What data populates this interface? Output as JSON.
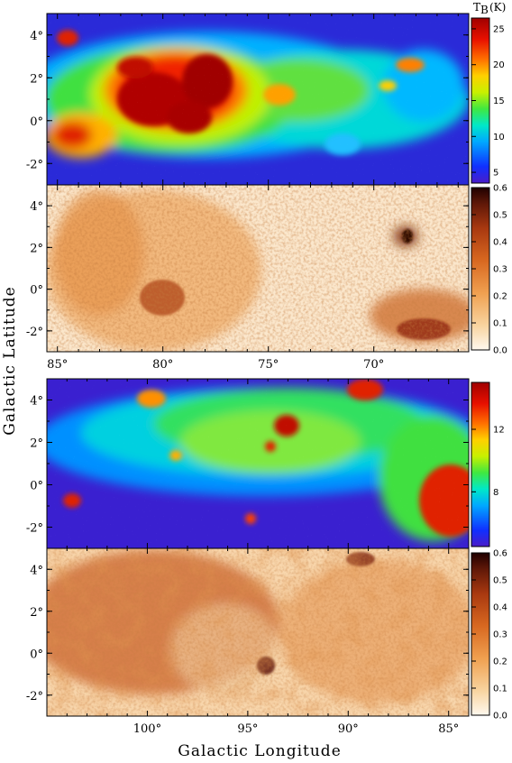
{
  "chart_data": [
    {
      "type": "heatmap",
      "panel": "top-brightness",
      "colorbar_label": "T",
      "colorbar_label_sub": "B",
      "colorbar_label_unit": "(K)",
      "colorbar_ticks": [
        "5",
        "10",
        "15",
        "20",
        "25"
      ],
      "colorbar_range": [
        3.5,
        26.5
      ],
      "xlim": [
        85.5,
        65.5
      ],
      "ylim": [
        -3,
        5
      ],
      "colormap": "rainbow"
    },
    {
      "type": "heatmap",
      "panel": "top-ratio",
      "colorbar_ticks": [
        "0.0",
        "0.1",
        "0.2",
        "0.3",
        "0.4",
        "0.5",
        "0.6"
      ],
      "colorbar_range": [
        0,
        0.6
      ],
      "xlim": [
        85.5,
        65.5
      ],
      "ylim": [
        -3,
        5
      ],
      "colormap": "orange-heat"
    },
    {
      "type": "heatmap",
      "panel": "bottom-brightness",
      "colorbar_ticks": [
        "8",
        "12"
      ],
      "colorbar_range": [
        4.5,
        15
      ],
      "xlim": [
        105,
        84
      ],
      "ylim": [
        -3,
        5
      ],
      "colormap": "rainbow"
    },
    {
      "type": "heatmap",
      "panel": "bottom-ratio",
      "colorbar_ticks": [
        "0.0",
        "0.1",
        "0.2",
        "0.3",
        "0.4",
        "0.5",
        "0.6"
      ],
      "colorbar_range": [
        0,
        0.6
      ],
      "xlim": [
        105,
        84
      ],
      "ylim": [
        -3,
        5
      ],
      "colormap": "orange-heat"
    }
  ],
  "axes": {
    "ylabel": "Galactic Latitude",
    "xlabel": "Galactic Longitude",
    "lat_ticks": [
      "4°",
      "2°",
      "0°",
      "-2°"
    ],
    "top_lon_ticks": [
      "85°",
      "80°",
      "75°",
      "70°"
    ],
    "bottom_lon_ticks": [
      "100°",
      "95°",
      "90°",
      "85°"
    ]
  },
  "colors": {
    "rainbow": [
      "#4a1cc8",
      "#1030ff",
      "#00a8ff",
      "#00e8c8",
      "#40e840",
      "#c8f000",
      "#ffd000",
      "#ff7000",
      "#e81000",
      "#a00000"
    ],
    "heat": [
      "#fff8ee",
      "#f8d4a0",
      "#f0a050",
      "#d86820",
      "#a83810",
      "#601808",
      "#200000"
    ]
  }
}
